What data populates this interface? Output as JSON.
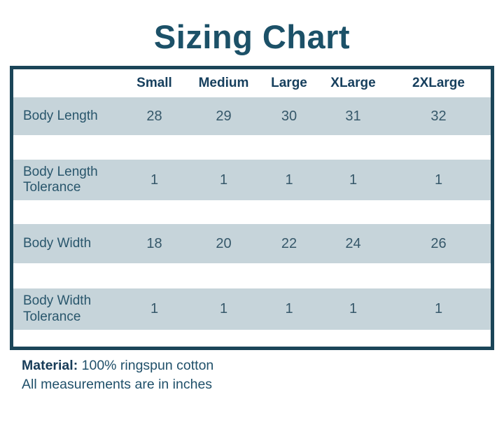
{
  "title": "Sizing Chart",
  "chart_data": {
    "type": "table",
    "title": "Sizing Chart",
    "columns": [
      "Small",
      "Medium",
      "Large",
      "XLarge",
      "2XLarge"
    ],
    "rows": [
      {
        "label": "Body Length",
        "values": [
          "28",
          "29",
          "30",
          "31",
          "32"
        ]
      },
      {
        "label": "Body Length Tolerance",
        "values": [
          "1",
          "1",
          "1",
          "1",
          "1"
        ]
      },
      {
        "label": "Body Width",
        "values": [
          "18",
          "20",
          "22",
          "24",
          "26"
        ]
      },
      {
        "label": "Body Width Tolerance",
        "values": [
          "1",
          "1",
          "1",
          "1",
          "1"
        ]
      }
    ]
  },
  "footer": {
    "material_label": "Material:",
    "material_value": "100% ringspun cotton",
    "note": "All measurements are in inches"
  },
  "colors": {
    "frame_border": "#1b4558",
    "row_highlight": "#c6d4da",
    "title_text": "#1c5168",
    "header_text": "#163f5d"
  }
}
